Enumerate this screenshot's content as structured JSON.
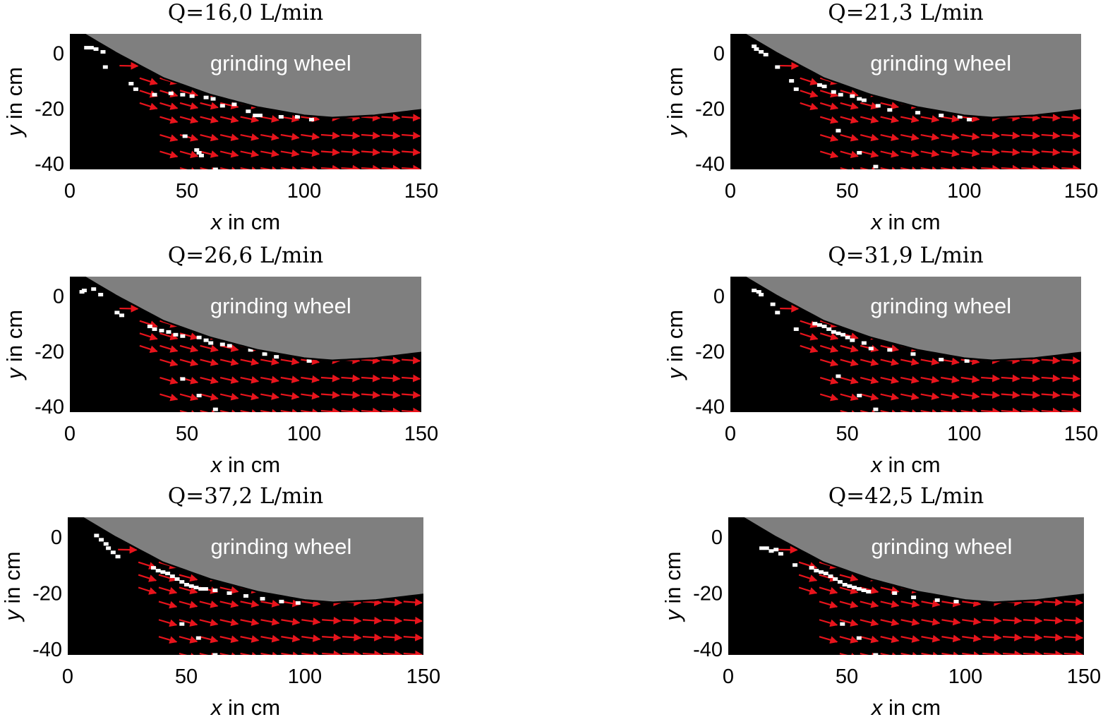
{
  "figure": {
    "x_label_var": "x",
    "y_label_var": "y",
    "axis_unit_text": " in cm",
    "annotation": "grinding wheel"
  },
  "chart_data": [
    {
      "type": "quiver",
      "title": "Q=16,0 L/min",
      "flow_rate": 16.0,
      "xlabel": "x in cm",
      "ylabel": "y in cm",
      "xlim": [
        0,
        150
      ],
      "ylim": [
        -42,
        7
      ],
      "xticks": [
        0,
        50,
        100,
        150
      ],
      "yticks": [
        0,
        -20,
        -40
      ],
      "background": "#000000",
      "wheel_color": "#7f7f7f",
      "vector_color": "#e8141c",
      "wheel_boundary": [
        [
          6,
          7
        ],
        [
          20,
          0
        ],
        [
          40,
          -9
        ],
        [
          60,
          -15
        ],
        [
          80,
          -19.5
        ],
        [
          100,
          -22.5
        ],
        [
          112,
          -23.3
        ],
        [
          130,
          -22.5
        ],
        [
          150,
          -20.5
        ]
      ],
      "bubbles": [
        [
          7,
          2
        ],
        [
          9,
          2
        ],
        [
          11,
          1.5
        ],
        [
          14,
          0.5
        ],
        [
          15,
          -5
        ],
        [
          26,
          -11
        ],
        [
          28,
          -13
        ],
        [
          36,
          -15
        ],
        [
          43,
          -14.5
        ],
        [
          48,
          -15
        ],
        [
          52,
          -15.5
        ],
        [
          58,
          -16
        ],
        [
          61,
          -16.5
        ],
        [
          65,
          -19
        ],
        [
          70,
          -18.5
        ],
        [
          76,
          -21
        ],
        [
          79,
          -22.5
        ],
        [
          81,
          -22.5
        ],
        [
          90,
          -23
        ],
        [
          97,
          -23
        ],
        [
          103,
          -24
        ],
        [
          49,
          -30
        ],
        [
          54,
          -35
        ],
        [
          55,
          -36
        ],
        [
          56,
          -37
        ],
        [
          62,
          -42
        ]
      ]
    },
    {
      "type": "quiver",
      "title": "Q=21,3 L/min",
      "flow_rate": 21.3,
      "xlabel": "x in cm",
      "ylabel": "y in cm",
      "xlim": [
        0,
        150
      ],
      "ylim": [
        -42,
        7
      ],
      "xticks": [
        0,
        50,
        100,
        150
      ],
      "yticks": [
        0,
        -20,
        -40
      ],
      "background": "#000000",
      "wheel_color": "#7f7f7f",
      "vector_color": "#e8141c",
      "wheel_boundary": [
        [
          6,
          7
        ],
        [
          20,
          0
        ],
        [
          40,
          -9
        ],
        [
          60,
          -15
        ],
        [
          80,
          -19.5
        ],
        [
          100,
          -22.5
        ],
        [
          112,
          -23.3
        ],
        [
          130,
          -22.5
        ],
        [
          150,
          -20.5
        ]
      ],
      "bubbles": [
        [
          10,
          2.5
        ],
        [
          11,
          1.5
        ],
        [
          13,
          0.5
        ],
        [
          15,
          -0.5
        ],
        [
          20,
          -5
        ],
        [
          26,
          -10
        ],
        [
          28,
          -13
        ],
        [
          38,
          -11.5
        ],
        [
          40,
          -12
        ],
        [
          44,
          -14
        ],
        [
          47,
          -15
        ],
        [
          52,
          -15.5
        ],
        [
          55,
          -16.5
        ],
        [
          57,
          -17
        ],
        [
          63,
          -19
        ],
        [
          68,
          -20.5
        ],
        [
          80,
          -21.5
        ],
        [
          90,
          -22.5
        ],
        [
          98,
          -23
        ],
        [
          102,
          -24
        ],
        [
          46,
          -28
        ],
        [
          55,
          -36
        ],
        [
          62,
          -41
        ]
      ]
    },
    {
      "type": "quiver",
      "title": "Q=26,6 L/min",
      "flow_rate": 26.6,
      "xlabel": "x in cm",
      "ylabel": "y in cm",
      "xlim": [
        0,
        150
      ],
      "ylim": [
        -42,
        7
      ],
      "xticks": [
        0,
        50,
        100,
        150
      ],
      "yticks": [
        0,
        -20,
        -40
      ],
      "background": "#000000",
      "wheel_color": "#7f7f7f",
      "vector_color": "#e8141c",
      "wheel_boundary": [
        [
          6,
          7
        ],
        [
          20,
          0
        ],
        [
          40,
          -9
        ],
        [
          60,
          -15
        ],
        [
          80,
          -19.5
        ],
        [
          100,
          -22.5
        ],
        [
          112,
          -23.3
        ],
        [
          130,
          -22.5
        ],
        [
          150,
          -20.5
        ]
      ],
      "bubbles": [
        [
          5,
          1.5
        ],
        [
          6,
          2
        ],
        [
          10,
          2.5
        ],
        [
          13,
          0.5
        ],
        [
          20,
          -6
        ],
        [
          22,
          -7
        ],
        [
          34,
          -11
        ],
        [
          36,
          -12
        ],
        [
          39,
          -12.5
        ],
        [
          42,
          -13
        ],
        [
          45,
          -14
        ],
        [
          48,
          -14.5
        ],
        [
          55,
          -15
        ],
        [
          58,
          -16
        ],
        [
          60,
          -17
        ],
        [
          65,
          -17.5
        ],
        [
          68,
          -18
        ],
        [
          77,
          -19.5
        ],
        [
          83,
          -21
        ],
        [
          88,
          -22
        ],
        [
          102,
          -23.5
        ],
        [
          48,
          -30
        ],
        [
          55,
          -36
        ],
        [
          62,
          -41
        ]
      ]
    },
    {
      "type": "quiver",
      "title": "Q=31,9 L/min",
      "flow_rate": 31.9,
      "xlabel": "x in cm",
      "ylabel": "y in cm",
      "xlim": [
        0,
        150
      ],
      "ylim": [
        -42,
        7
      ],
      "xticks": [
        0,
        50,
        100,
        150
      ],
      "yticks": [
        0,
        -20,
        -40
      ],
      "background": "#000000",
      "wheel_color": "#7f7f7f",
      "vector_color": "#e8141c",
      "wheel_boundary": [
        [
          6,
          7
        ],
        [
          20,
          0
        ],
        [
          40,
          -9
        ],
        [
          60,
          -15
        ],
        [
          80,
          -19.5
        ],
        [
          100,
          -22.5
        ],
        [
          112,
          -23.3
        ],
        [
          130,
          -22.5
        ],
        [
          150,
          -20.5
        ]
      ],
      "bubbles": [
        [
          10,
          2
        ],
        [
          12,
          1.5
        ],
        [
          13,
          0.5
        ],
        [
          18,
          -3
        ],
        [
          20,
          -6
        ],
        [
          28,
          -12
        ],
        [
          36,
          -10
        ],
        [
          38,
          -10.5
        ],
        [
          40,
          -11
        ],
        [
          42,
          -12
        ],
        [
          44,
          -13
        ],
        [
          46,
          -13.5
        ],
        [
          48,
          -14
        ],
        [
          50,
          -15
        ],
        [
          52,
          -16
        ],
        [
          57,
          -17
        ],
        [
          60,
          -19
        ],
        [
          68,
          -19.5
        ],
        [
          78,
          -21
        ],
        [
          90,
          -23
        ],
        [
          101,
          -23.5
        ],
        [
          46,
          -29
        ],
        [
          55,
          -36
        ],
        [
          62,
          -41
        ]
      ]
    },
    {
      "type": "quiver",
      "title": "Q=37,2 L/min",
      "flow_rate": 37.2,
      "xlabel": "x in cm",
      "ylabel": "y in cm",
      "xlim": [
        0,
        150
      ],
      "ylim": [
        -42,
        7
      ],
      "xticks": [
        0,
        50,
        100,
        150
      ],
      "yticks": [
        0,
        -20,
        -40
      ],
      "background": "#000000",
      "wheel_color": "#7f7f7f",
      "vector_color": "#e8141c",
      "wheel_boundary": [
        [
          6,
          7
        ],
        [
          20,
          0
        ],
        [
          40,
          -9
        ],
        [
          60,
          -15
        ],
        [
          80,
          -19.5
        ],
        [
          100,
          -22.5
        ],
        [
          112,
          -23.3
        ],
        [
          130,
          -22.5
        ],
        [
          150,
          -20.5
        ]
      ],
      "bubbles": [
        [
          12,
          0.5
        ],
        [
          14,
          -1
        ],
        [
          16,
          -2.5
        ],
        [
          17,
          -4
        ],
        [
          19,
          -5.5
        ],
        [
          21,
          -7
        ],
        [
          36,
          -11
        ],
        [
          38,
          -12
        ],
        [
          40,
          -12.5
        ],
        [
          42,
          -13
        ],
        [
          44,
          -14
        ],
        [
          46,
          -15
        ],
        [
          48,
          -16
        ],
        [
          50,
          -17
        ],
        [
          52,
          -17.5
        ],
        [
          54,
          -18
        ],
        [
          56,
          -18.5
        ],
        [
          58,
          -18.5
        ],
        [
          62,
          -19
        ],
        [
          68,
          -20
        ],
        [
          75,
          -21
        ],
        [
          82,
          -22
        ],
        [
          90,
          -23
        ],
        [
          97,
          -23.5
        ],
        [
          48,
          -31
        ],
        [
          55,
          -36
        ],
        [
          62,
          -42
        ]
      ]
    },
    {
      "type": "quiver",
      "title": "Q=42,5 L/min",
      "flow_rate": 42.5,
      "xlabel": "x in cm",
      "ylabel": "y in cm",
      "xlim": [
        0,
        150
      ],
      "ylim": [
        -42,
        7
      ],
      "xticks": [
        0,
        50,
        100,
        150
      ],
      "yticks": [
        0,
        -20,
        -40
      ],
      "background": "#000000",
      "wheel_color": "#7f7f7f",
      "vector_color": "#e8141c",
      "wheel_boundary": [
        [
          6,
          7
        ],
        [
          20,
          0
        ],
        [
          40,
          -9
        ],
        [
          60,
          -15
        ],
        [
          80,
          -19.5
        ],
        [
          100,
          -22.5
        ],
        [
          112,
          -23.3
        ],
        [
          130,
          -22.5
        ],
        [
          150,
          -20.5
        ]
      ],
      "bubbles": [
        [
          14,
          -4
        ],
        [
          16,
          -4
        ],
        [
          18,
          -5
        ],
        [
          20,
          -4.5
        ],
        [
          22,
          -6
        ],
        [
          28,
          -10
        ],
        [
          35,
          -11
        ],
        [
          37,
          -12
        ],
        [
          39,
          -12.5
        ],
        [
          41,
          -13
        ],
        [
          43,
          -14
        ],
        [
          45,
          -15
        ],
        [
          47,
          -16
        ],
        [
          49,
          -17
        ],
        [
          51,
          -17.5
        ],
        [
          53,
          -18
        ],
        [
          55,
          -18.5
        ],
        [
          57,
          -19
        ],
        [
          59,
          -19.5
        ],
        [
          70,
          -20
        ],
        [
          78,
          -21.5
        ],
        [
          88,
          -22.5
        ],
        [
          96,
          -23
        ],
        [
          48,
          -31
        ],
        [
          55,
          -36
        ],
        [
          62,
          -42
        ]
      ]
    }
  ]
}
